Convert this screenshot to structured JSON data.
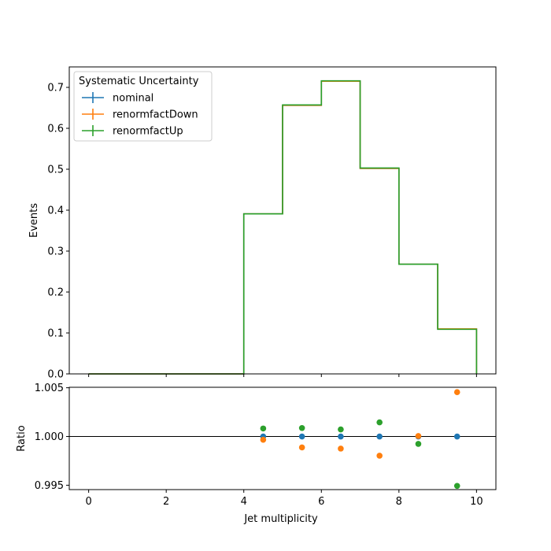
{
  "chart_data": [
    {
      "type": "line",
      "drawstyle": "steps",
      "x_edges": [
        0,
        1,
        2,
        3,
        4,
        5,
        6,
        7,
        8,
        9,
        10
      ],
      "series": [
        {
          "name": "nominal",
          "color": "#1f77b4",
          "values": [
            0,
            0,
            0,
            0,
            0.391,
            0.656,
            0.715,
            0.502,
            0.268,
            0.11
          ]
        },
        {
          "name": "renormfactDown",
          "color": "#ff7f0e",
          "values": [
            0,
            0,
            0,
            0,
            0.391,
            0.656,
            0.715,
            0.502,
            0.268,
            0.11
          ]
        },
        {
          "name": "renormfactUp",
          "color": "#2ca02c",
          "values": [
            0,
            0,
            0,
            0,
            0.391,
            0.657,
            0.716,
            0.503,
            0.268,
            0.109
          ]
        }
      ],
      "xlim": [
        -0.5,
        10.5
      ],
      "ylim": [
        0,
        0.75
      ],
      "yticks": [
        "0.0",
        "0.1",
        "0.2",
        "0.3",
        "0.4",
        "0.5",
        "0.6",
        "0.7"
      ],
      "ylabel": "Events",
      "legend": {
        "title": "Systematic Uncertainty",
        "location": "top-left"
      },
      "grid": false
    },
    {
      "type": "scatter",
      "x": [
        4.5,
        5.5,
        6.5,
        7.5,
        8.5,
        9.5
      ],
      "series": [
        {
          "name": "nominal",
          "color": "#1f77b4",
          "values": [
            1.0,
            1.0,
            1.0,
            1.0,
            1.0,
            1.0
          ]
        },
        {
          "name": "renormfactDown",
          "color": "#ff7f0e",
          "values": [
            0.99966,
            0.99888,
            0.99876,
            0.99803,
            1.00005,
            1.00455
          ]
        },
        {
          "name": "renormfactUp",
          "color": "#2ca02c",
          "values": [
            1.00082,
            1.00087,
            1.00072,
            1.00145,
            0.99924,
            0.99493
          ]
        }
      ],
      "reference_line": 1.0,
      "xlim": [
        -0.5,
        10.5
      ],
      "ylim": [
        0.99455,
        1.00505
      ],
      "xticks": [
        "0",
        "2",
        "4",
        "6",
        "8",
        "10"
      ],
      "yticks": [
        "0.995",
        "1.000",
        "1.005"
      ],
      "xlabel": "Jet multiplicity",
      "ylabel": "Ratio",
      "grid": false
    }
  ]
}
